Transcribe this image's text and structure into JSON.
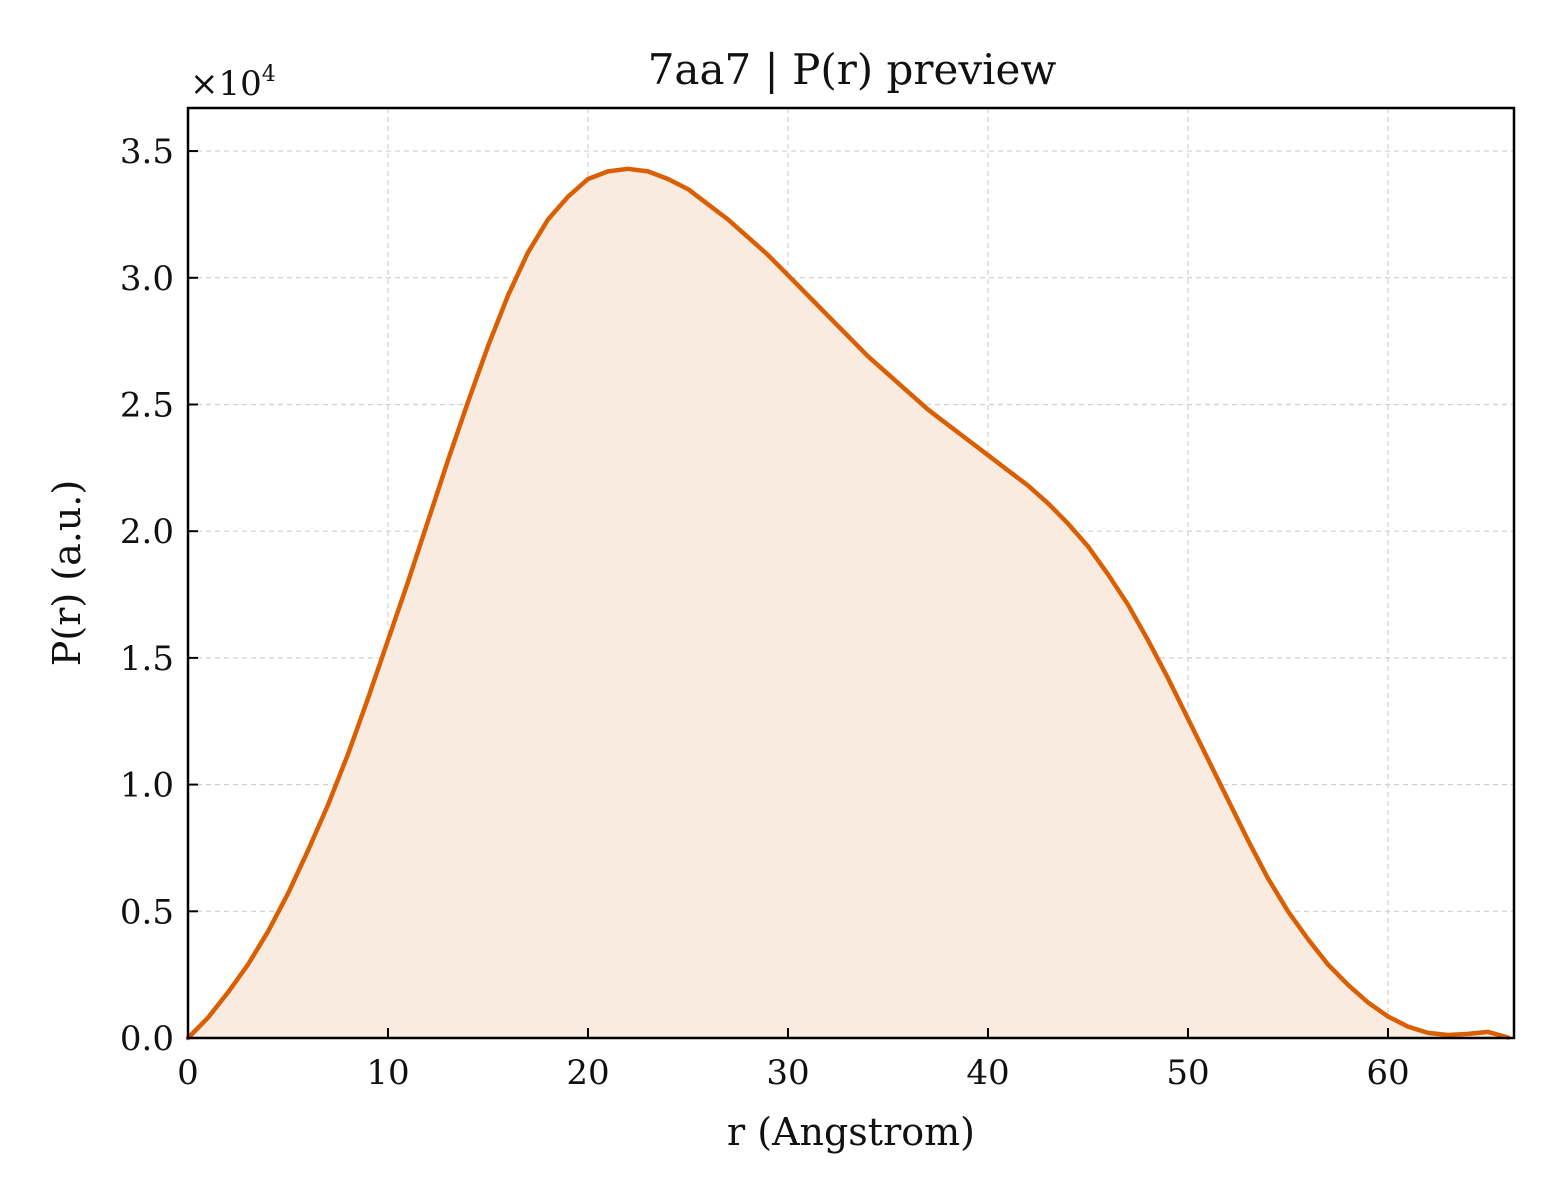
{
  "chart_data": {
    "type": "area",
    "title": "7aa7 | P(r) preview",
    "xlabel": "r (Angstrom)",
    "ylabel": "P(r) (a.u.)",
    "y_offset_label_base": "×10",
    "y_offset_label_exp": "4",
    "y_scale": 10000,
    "xlim": [
      0,
      66.3
    ],
    "ylim": [
      0,
      36700
    ],
    "x_ticks": [
      0,
      10,
      20,
      30,
      40,
      50,
      60
    ],
    "x_tick_labels": [
      "0",
      "10",
      "20",
      "30",
      "40",
      "50",
      "60"
    ],
    "y_ticks": [
      0,
      5000,
      10000,
      15000,
      20000,
      25000,
      30000,
      35000
    ],
    "y_tick_labels": [
      "0.0",
      "0.5",
      "1.0",
      "1.5",
      "2.0",
      "2.5",
      "3.0",
      "3.5"
    ],
    "grid": true,
    "line_color": "#d95f02",
    "fill_color": "#f9ebe0",
    "series": [
      {
        "x": [
          0,
          1,
          2,
          3,
          4,
          5,
          6,
          7,
          8,
          9,
          10,
          11,
          12,
          13,
          14,
          15,
          16,
          17,
          18,
          19,
          20,
          21,
          22,
          23,
          24,
          25,
          26,
          27,
          28,
          29,
          30,
          31,
          32,
          33,
          34,
          35,
          36,
          37,
          38,
          39,
          40,
          41,
          42,
          43,
          44,
          45,
          46,
          47,
          48,
          49,
          50,
          51,
          52,
          53,
          54,
          55,
          56,
          57,
          58,
          59,
          60,
          61,
          62,
          63,
          64,
          65,
          66
        ],
        "y": [
          0,
          800,
          1800,
          2900,
          4200,
          5700,
          7400,
          9200,
          11200,
          13400,
          15700,
          18000,
          20400,
          22800,
          25100,
          27300,
          29300,
          31000,
          32300,
          33200,
          33900,
          34200,
          34300,
          34200,
          33900,
          33500,
          32900,
          32300,
          31600,
          30900,
          30100,
          29300,
          28500,
          27700,
          26900,
          26200,
          25500,
          24800,
          24200,
          23600,
          23000,
          22400,
          21800,
          21100,
          20300,
          19400,
          18300,
          17100,
          15700,
          14200,
          12600,
          11000,
          9400,
          7800,
          6300,
          5000,
          3900,
          2900,
          2100,
          1400,
          850,
          450,
          200,
          120,
          160,
          240,
          20
        ]
      }
    ]
  }
}
